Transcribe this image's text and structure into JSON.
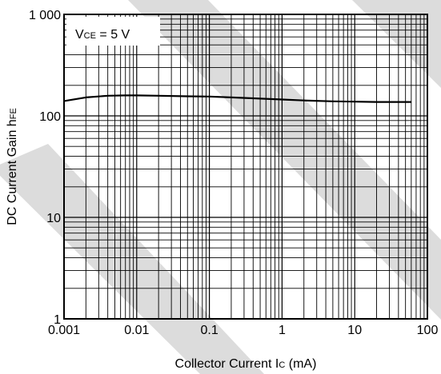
{
  "chart_data": {
    "type": "line",
    "title": "",
    "xlabel": {
      "text": "Collector Current  I",
      "sub": "C",
      "unit": " (mA)"
    },
    "ylabel": {
      "text": "DC Current Gain  h",
      "sub": "FE"
    },
    "xscale": "log",
    "yscale": "log",
    "xlim": [
      0.001,
      100
    ],
    "ylim": [
      1,
      1000
    ],
    "grid": true,
    "x_tick_labels": [
      "0.001",
      "0.01",
      "0.1",
      "1",
      "10",
      "100"
    ],
    "y_tick_labels": [
      "1",
      "10",
      "100",
      "1 000"
    ],
    "annotation": {
      "prefix": "V",
      "sub": "CE",
      "suffix": " = 5 V"
    },
    "series": [
      {
        "x": [
          0.001,
          0.002,
          0.004,
          0.007,
          0.01,
          0.02,
          0.05,
          0.1,
          0.2,
          0.5,
          1,
          2,
          5,
          10,
          20,
          60
        ],
        "y": [
          140,
          152,
          158,
          159,
          159,
          158,
          156,
          155,
          152,
          148,
          145,
          142,
          139,
          138,
          137,
          137
        ]
      }
    ],
    "colors": {
      "line": "#000000",
      "watermark": "#dcdcdc",
      "background": "#ffffff"
    }
  }
}
